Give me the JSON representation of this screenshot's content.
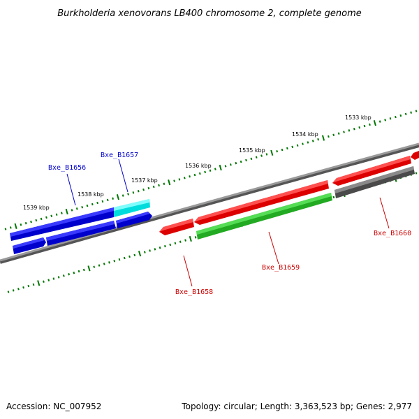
{
  "title": "Burkholderia xenovorans LB400 chromosome 2, complete genome",
  "colors": {
    "blue": "#0000ff",
    "cyan": "#00ffff",
    "red": "#ff0000",
    "green": "#33cc33",
    "gray": "#555555",
    "tick": "#007700",
    "backbone": "#808080",
    "label_blue": "#0000cc",
    "label_red": "#cc0000"
  },
  "scale_labels": [
    {
      "id": "1533",
      "text": "1533 kbp"
    },
    {
      "id": "1534",
      "text": "1534 kbp"
    },
    {
      "id": "1535",
      "text": "1535 kbp"
    },
    {
      "id": "1536",
      "text": "1536 kbp"
    },
    {
      "id": "1537",
      "text": "1537 kbp"
    },
    {
      "id": "1538",
      "text": "1538 kbp"
    },
    {
      "id": "1539",
      "text": "1539 kbp"
    }
  ],
  "gene_labels": {
    "b1656": "Bxe_B1656",
    "b1657": "Bxe_B1657",
    "b1658": "Bxe_B1658",
    "b1659": "Bxe_B1659",
    "b1660": "Bxe_B1660"
  },
  "footer": {
    "accession": "Accession: NC_007952",
    "stats": "Topology: circular; Length: 3,363,523 bp; Genes: 2,977"
  }
}
